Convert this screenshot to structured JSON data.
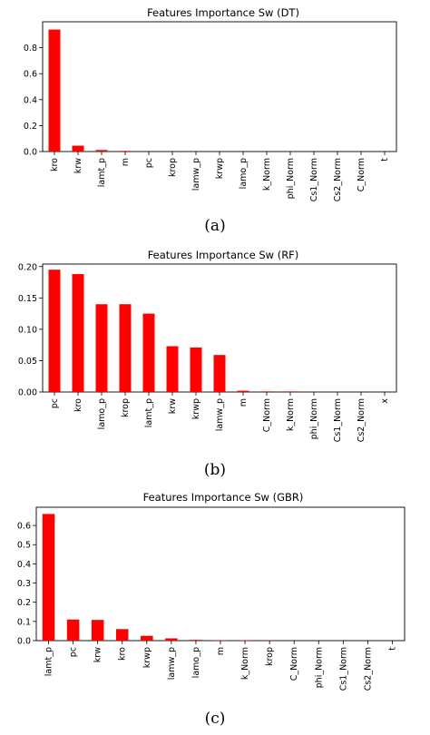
{
  "bar_color": "#ff0000",
  "chart_data": [
    {
      "type": "bar",
      "title": "Features Importance Sw (DT)",
      "panel_label": "(a)",
      "categories": [
        "kro",
        "krw",
        "lamt_p",
        "m",
        "pc",
        "krop",
        "lamw_p",
        "krwp",
        "lamo_p",
        "k_Norm",
        "phi_Norm",
        "Cs1_Norm",
        "Cs2_Norm",
        "C_Norm",
        "t"
      ],
      "values": [
        0.94,
        0.045,
        0.012,
        0.005,
        0,
        0,
        0,
        0,
        0,
        0,
        0,
        0,
        0,
        0,
        0
      ],
      "yticks": [
        "0.0",
        "0.2",
        "0.4",
        "0.6",
        "0.8"
      ],
      "ylim": [
        0,
        1.0
      ],
      "xlabel": "",
      "ylabel": "",
      "grid": false
    },
    {
      "type": "bar",
      "title": "Features Importance Sw (RF)",
      "panel_label": "(b)",
      "categories": [
        "pc",
        "kro",
        "lamo_p",
        "krop",
        "lamt_p",
        "krw",
        "krwp",
        "lamw_p",
        "m",
        "C_Norm",
        "k_Norm",
        "phi_Norm",
        "Cs1_Norm",
        "Cs2_Norm",
        "x"
      ],
      "values": [
        0.195,
        0.188,
        0.14,
        0.14,
        0.125,
        0.073,
        0.071,
        0.059,
        0.002,
        0.001,
        0.001,
        0,
        0,
        0,
        0
      ],
      "yticks": [
        "0.00",
        "0.05",
        "0.10",
        "0.15",
        "0.20"
      ],
      "ylim": [
        0,
        0.204
      ],
      "xlabel": "",
      "ylabel": "",
      "grid": false
    },
    {
      "type": "bar",
      "title": "Features Importance Sw (GBR)",
      "panel_label": "(c)",
      "categories": [
        "lamt_p",
        "pc",
        "krw",
        "kro",
        "krwp",
        "lamw_p",
        "lamo_p",
        "m",
        "k_Norm",
        "krop",
        "C_Norm",
        "phi_Norm",
        "Cs1_Norm",
        "Cs2_Norm",
        "t"
      ],
      "values": [
        0.66,
        0.11,
        0.108,
        0.06,
        0.025,
        0.012,
        0.004,
        0.002,
        0.002,
        0.001,
        0,
        0,
        0,
        0,
        0
      ],
      "yticks": [
        "0.0",
        "0.1",
        "0.2",
        "0.3",
        "0.4",
        "0.5",
        "0.6"
      ],
      "ylim": [
        0,
        0.695
      ],
      "xlabel": "",
      "ylabel": "",
      "grid": false
    }
  ]
}
